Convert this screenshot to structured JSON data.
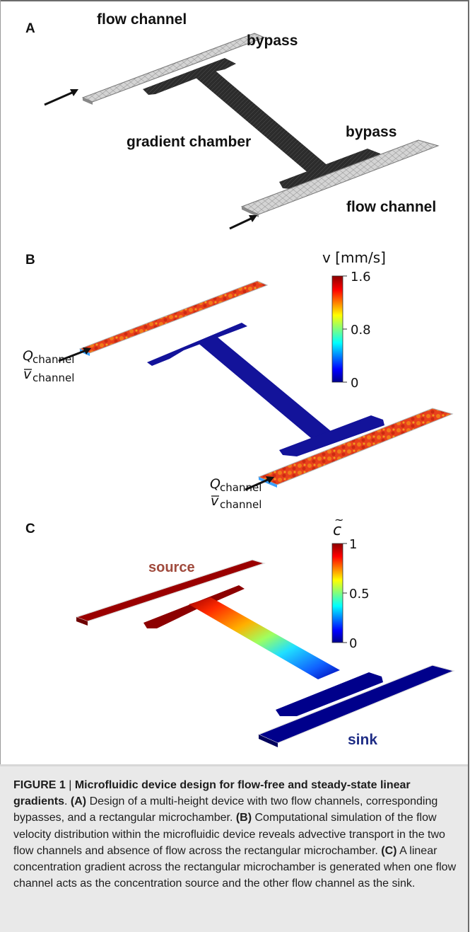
{
  "panel_a": {
    "label": "A",
    "flow_channel_top": "flow channel",
    "bypass_top": "bypass",
    "gradient_chamber": "gradient chamber",
    "bypass_bottom": "bypass",
    "flow_channel_bottom": "flow channel"
  },
  "panel_b": {
    "label": "B",
    "colorbar_title": "v [mm/s]",
    "tick_max": "1.6",
    "tick_mid": "0.8",
    "tick_min": "0",
    "q_symbol": "Q",
    "q_sub": "channel",
    "v_symbol": "v",
    "v_sub": "channel",
    "colorbar_range": [
      0,
      1.6
    ]
  },
  "panel_c": {
    "label": "C",
    "colorbar_title": "c",
    "colorbar_title_accent": "~",
    "tick_max": "1",
    "tick_mid": "0.5",
    "tick_min": "0",
    "source": "source",
    "sink": "sink",
    "colorbar_range": [
      0,
      1
    ]
  },
  "colors": {
    "jet_red": "#8b0000",
    "jet_blue": "#00008b",
    "mesh_gray": "#c9c9c9",
    "source_text": "#a04a3c",
    "sink_text": "#1f2d86"
  },
  "caption": {
    "figure_label": "FIGURE 1",
    "separator": " | ",
    "title": "Microfluidic device design for flow-free and steady-state linear gradients",
    "part_a_tag": "(A)",
    "part_a": " Design of a multi-height device with two flow channels, corresponding bypasses, and a rectangular microchamber. ",
    "part_b_tag": "(B)",
    "part_b": " Computational simulation of the flow velocity distribution within the microfluidic device reveals advective transport in the two flow channels and absence of flow across the rectangular microchamber. ",
    "part_c_tag": "(C)",
    "part_c": " A linear concentration gradient across the rectangular microchamber is generated when one flow channel acts as the concentration source and the other flow channel as the sink."
  }
}
